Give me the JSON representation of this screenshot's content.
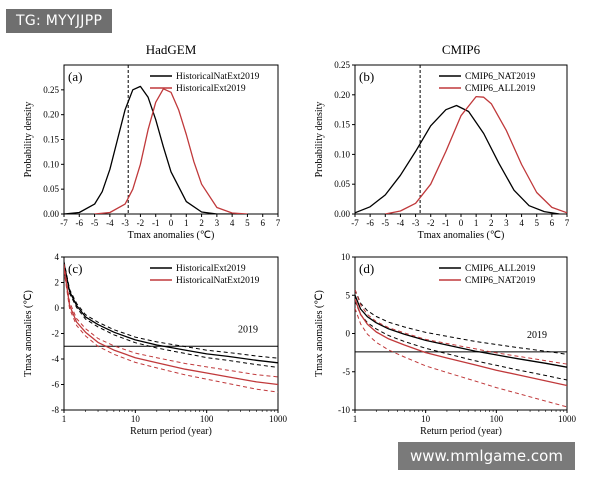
{
  "watermark_top": "TG: MYYJJPP",
  "watermark_bottom": "www.mmlgame.com",
  "colors": {
    "black": "#000000",
    "red": "#c0393b"
  },
  "chart_data": [
    {
      "id": "a",
      "type": "line",
      "panel_label": "(a)",
      "title": "HadGEM",
      "xlabel": "Tmax anomalies (℃)",
      "ylabel": "Probability density",
      "xlim": [
        -7,
        7
      ],
      "ylim": [
        0,
        0.3
      ],
      "xticks": [
        -7,
        -6,
        -5,
        -4,
        -3,
        -2,
        -1,
        0,
        1,
        2,
        3,
        4,
        5,
        6,
        7
      ],
      "yticks": [
        "0.00",
        "0.05",
        "0.10",
        "0.15",
        "0.20",
        "0.25"
      ],
      "legend_position": "top-right",
      "vline": -2.8,
      "series": [
        {
          "name": "HistoricalNatExt2019",
          "color": "#000000",
          "x": [
            -7,
            -6,
            -5,
            -4.5,
            -4,
            -3.5,
            -3,
            -2.5,
            -2,
            -1.5,
            -1,
            -0.5,
            0,
            1,
            2,
            3,
            4
          ],
          "y": [
            0.0,
            0.003,
            0.02,
            0.045,
            0.09,
            0.15,
            0.21,
            0.25,
            0.257,
            0.235,
            0.19,
            0.135,
            0.085,
            0.025,
            0.004,
            0.0,
            0.0
          ]
        },
        {
          "name": "HistoricalExt2019",
          "color": "#c0393b",
          "x": [
            -5,
            -4,
            -3,
            -2.5,
            -2,
            -1.5,
            -1,
            -0.5,
            0,
            0.5,
            1,
            1.5,
            2,
            3,
            4,
            5
          ],
          "y": [
            0.0,
            0.003,
            0.02,
            0.05,
            0.1,
            0.17,
            0.225,
            0.252,
            0.245,
            0.21,
            0.16,
            0.105,
            0.06,
            0.013,
            0.002,
            0.0
          ]
        }
      ]
    },
    {
      "id": "b",
      "type": "line",
      "panel_label": "(b)",
      "title": "CMIP6",
      "xlabel": "Tmax anomalies (℃)",
      "ylabel": "Probability density",
      "xlim": [
        -7,
        7
      ],
      "ylim": [
        0,
        0.25
      ],
      "xticks": [
        -7,
        -6,
        -5,
        -4,
        -3,
        -2,
        -1,
        0,
        1,
        2,
        3,
        4,
        5,
        6,
        7
      ],
      "yticks": [
        "0.00",
        "0.05",
        "0.10",
        "0.15",
        "0.20",
        "0.25"
      ],
      "legend_position": "top-right",
      "vline": -2.7,
      "series": [
        {
          "name": "CMIP6_NAT2019",
          "color": "#000000",
          "x": [
            -7,
            -6,
            -5,
            -4,
            -3,
            -2,
            -1,
            -0.3,
            0.5,
            1.5,
            2.5,
            3.5,
            4.5,
            5.5,
            6.5
          ],
          "y": [
            0.002,
            0.012,
            0.032,
            0.065,
            0.105,
            0.148,
            0.175,
            0.182,
            0.172,
            0.135,
            0.085,
            0.04,
            0.014,
            0.004,
            0.0
          ]
        },
        {
          "name": "CMIP6_ALL2019",
          "color": "#c0393b",
          "x": [
            -5,
            -4,
            -3,
            -2,
            -1,
            0,
            1,
            1.5,
            2,
            3,
            4,
            5,
            6,
            7
          ],
          "y": [
            0.0,
            0.005,
            0.018,
            0.05,
            0.105,
            0.165,
            0.197,
            0.196,
            0.185,
            0.14,
            0.083,
            0.036,
            0.011,
            0.002
          ]
        }
      ]
    },
    {
      "id": "c",
      "type": "line",
      "panel_label": "(c)",
      "xlabel": "Return period (year)",
      "ylabel": "Tmax anomalies (℃)",
      "xscale": "log",
      "xlim": [
        1,
        1000
      ],
      "ylim": [
        -8,
        4
      ],
      "xticks": [
        1,
        10,
        100,
        1000
      ],
      "yticks": [
        4,
        2,
        0,
        -2,
        -4,
        -6,
        -8
      ],
      "legend_position": "top-right",
      "hline": -3,
      "annotation": "2019",
      "series": [
        {
          "name": "HistoricalExt2019",
          "color": "#000000",
          "x": [
            1,
            1.2,
            1.5,
            2,
            3,
            5,
            10,
            20,
            50,
            100,
            200,
            500,
            1000
          ],
          "y": [
            3.5,
            1.3,
            0.2,
            -0.7,
            -1.3,
            -1.9,
            -2.5,
            -2.9,
            -3.3,
            -3.6,
            -3.8,
            -4.1,
            -4.3
          ]
        },
        {
          "name": "HistoricalNatExt2019",
          "color": "#c0393b",
          "x": [
            1,
            1.2,
            1.5,
            2,
            3,
            5,
            10,
            20,
            50,
            100,
            200,
            500,
            1000
          ],
          "y": [
            3.2,
            0.2,
            -1.1,
            -1.9,
            -2.7,
            -3.3,
            -3.9,
            -4.3,
            -4.8,
            -5.1,
            -5.4,
            -5.8,
            -6.0
          ]
        }
      ]
    },
    {
      "id": "d",
      "type": "line",
      "panel_label": "(d)",
      "xlabel": "Return period (year)",
      "ylabel": "Tmax anomalies (℃)",
      "xscale": "log",
      "xlim": [
        1,
        1000
      ],
      "ylim": [
        -10,
        10
      ],
      "xticks": [
        1,
        10,
        100,
        1000
      ],
      "yticks": [
        10,
        5,
        0,
        -5,
        -10
      ],
      "legend_position": "top-right",
      "hline": -2.4,
      "annotation": "2019",
      "series": [
        {
          "name": "CMIP6_ALL2019",
          "color": "#000000",
          "x": [
            1,
            1.2,
            1.5,
            2,
            3,
            5,
            10,
            20,
            50,
            100,
            200,
            500,
            1000
          ],
          "y": [
            5,
            3.2,
            2.2,
            1.4,
            0.6,
            -0.1,
            -0.9,
            -1.5,
            -2.3,
            -2.8,
            -3.3,
            -3.9,
            -4.4
          ]
        },
        {
          "name": "CMIP6_NAT2019",
          "color": "#c0393b",
          "x": [
            1,
            1.2,
            1.5,
            2,
            3,
            5,
            10,
            20,
            50,
            100,
            200,
            500,
            1000
          ],
          "y": [
            4.5,
            2.5,
            1.2,
            0.2,
            -0.7,
            -1.5,
            -2.5,
            -3.2,
            -4.1,
            -4.8,
            -5.4,
            -6.2,
            -6.8
          ]
        }
      ]
    }
  ]
}
